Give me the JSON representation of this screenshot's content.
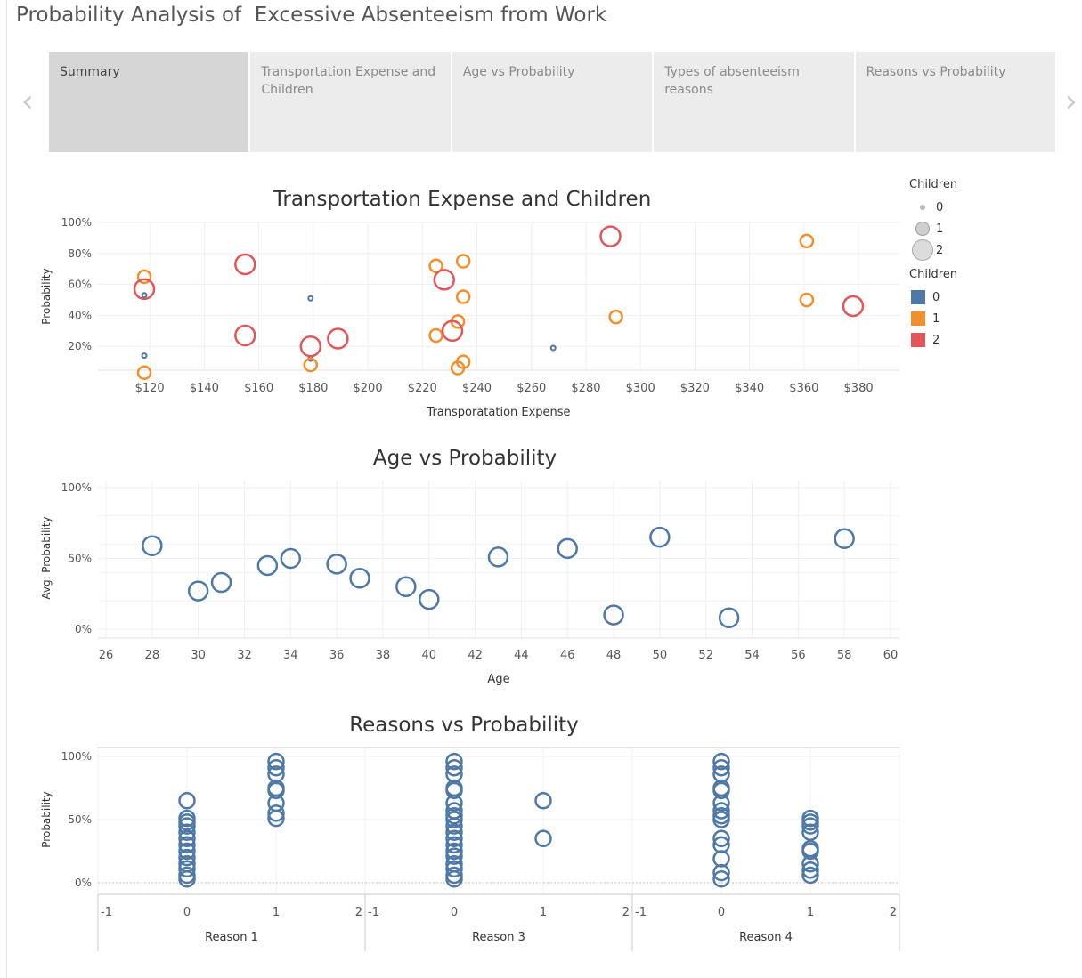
{
  "page": {
    "title": "Probability Analysis of  Excessive Absenteeism from Work"
  },
  "nav": {
    "prev_icon": "chevron-left-icon",
    "next_icon": "chevron-right-icon"
  },
  "tabs": [
    {
      "label": "Summary",
      "active": true
    },
    {
      "label": "Transportation Expense and Children",
      "active": false
    },
    {
      "label": "Age vs Probability",
      "active": false
    },
    {
      "label": "Types of absenteeism reasons",
      "active": false
    },
    {
      "label": "Reasons vs Probability",
      "active": false
    }
  ],
  "colors": {
    "c0": "#4e79a7",
    "c1": "#f28e2b",
    "c2": "#e15759"
  },
  "legend": {
    "size_title": "Children",
    "size_items": [
      "0",
      "1",
      "2"
    ],
    "color_title": "Children",
    "color_items": [
      "0",
      "1",
      "2"
    ]
  },
  "chart_data": [
    {
      "type": "scatter",
      "title": "Transportation Expense and Children",
      "xlabel": "Transporatation Expense",
      "ylabel": "Probability",
      "xlim": [
        101,
        395
      ],
      "ylim": [
        0,
        1.0
      ],
      "x_ticks": [
        120,
        140,
        160,
        180,
        200,
        220,
        240,
        260,
        280,
        300,
        320,
        340,
        360,
        380
      ],
      "x_tick_labels": [
        "$120",
        "$140",
        "$160",
        "$180",
        "$200",
        "$220",
        "$240",
        "$260",
        "$280",
        "$300",
        "$320",
        "$340",
        "$360",
        "$380"
      ],
      "y_ticks": [
        0.2,
        0.4,
        0.6,
        0.8,
        1.0
      ],
      "y_tick_labels": [
        "20%",
        "40%",
        "60%",
        "80%",
        "100%"
      ],
      "size_by": "Children",
      "color_by": "Children",
      "points": [
        {
          "x": 118,
          "y": 0.53,
          "children": 0
        },
        {
          "x": 118,
          "y": 0.14,
          "children": 0
        },
        {
          "x": 179,
          "y": 0.51,
          "children": 0
        },
        {
          "x": 179,
          "y": 0.12,
          "children": 0
        },
        {
          "x": 268,
          "y": 0.19,
          "children": 0
        },
        {
          "x": 118,
          "y": 0.65,
          "children": 1
        },
        {
          "x": 118,
          "y": 0.03,
          "children": 1
        },
        {
          "x": 179,
          "y": 0.08,
          "children": 1
        },
        {
          "x": 225,
          "y": 0.72,
          "children": 1
        },
        {
          "x": 235,
          "y": 0.75,
          "children": 1
        },
        {
          "x": 235,
          "y": 0.52,
          "children": 1
        },
        {
          "x": 233,
          "y": 0.36,
          "children": 1
        },
        {
          "x": 225,
          "y": 0.27,
          "children": 1
        },
        {
          "x": 235,
          "y": 0.1,
          "children": 1
        },
        {
          "x": 233,
          "y": 0.06,
          "children": 1
        },
        {
          "x": 291,
          "y": 0.39,
          "children": 1
        },
        {
          "x": 361,
          "y": 0.88,
          "children": 1
        },
        {
          "x": 361,
          "y": 0.5,
          "children": 1
        },
        {
          "x": 118,
          "y": 0.57,
          "children": 2
        },
        {
          "x": 155,
          "y": 0.73,
          "children": 2
        },
        {
          "x": 155,
          "y": 0.27,
          "children": 2
        },
        {
          "x": 179,
          "y": 0.2,
          "children": 2
        },
        {
          "x": 189,
          "y": 0.25,
          "children": 2
        },
        {
          "x": 228,
          "y": 0.63,
          "children": 2
        },
        {
          "x": 231,
          "y": 0.3,
          "children": 2
        },
        {
          "x": 289,
          "y": 0.91,
          "children": 2
        },
        {
          "x": 378,
          "y": 0.46,
          "children": 2
        }
      ]
    },
    {
      "type": "scatter",
      "title": "Age vs Probability",
      "xlabel": "Age",
      "ylabel": "Avg. Probability",
      "xlim": [
        26,
        60
      ],
      "ylim": [
        0,
        1.0
      ],
      "x_ticks": [
        26,
        28,
        30,
        32,
        34,
        36,
        38,
        40,
        42,
        44,
        46,
        48,
        50,
        52,
        54,
        56,
        58,
        60
      ],
      "x_tick_labels": [
        "26",
        "28",
        "30",
        "32",
        "34",
        "36",
        "38",
        "40",
        "42",
        "44",
        "46",
        "48",
        "50",
        "52",
        "54",
        "56",
        "58",
        "60"
      ],
      "y_ticks": [
        0,
        0.5,
        1.0
      ],
      "y_tick_labels": [
        "0%",
        "50%",
        "100%"
      ],
      "x": [
        28,
        30,
        31,
        33,
        34,
        36,
        37,
        39,
        40,
        43,
        46,
        48,
        50,
        53,
        58
      ],
      "y": [
        0.59,
        0.27,
        0.33,
        0.45,
        0.5,
        0.46,
        0.36,
        0.3,
        0.21,
        0.51,
        0.57,
        0.1,
        0.65,
        0.08,
        0.64
      ]
    },
    {
      "type": "scatter",
      "title": "Reasons vs Probability",
      "ylabel": "Probability",
      "ylim": [
        -0.09,
        1.03
      ],
      "y_ticks": [
        0,
        0.5,
        1.0
      ],
      "y_tick_labels": [
        "0%",
        "50%",
        "100%"
      ],
      "xlim": [
        -1,
        2
      ],
      "x_ticks": [
        -1,
        0,
        1,
        2
      ],
      "x_tick_labels": [
        "-1",
        "0",
        "1",
        "2"
      ],
      "panels": [
        {
          "xlabel": "Reason 1",
          "points": [
            {
              "x": 0,
              "y": [
                0.65,
                0.51,
                0.48,
                0.45,
                0.4,
                0.35,
                0.3,
                0.25,
                0.2,
                0.15,
                0.11,
                0.06,
                0.03
              ]
            },
            {
              "x": 1,
              "y": [
                0.96,
                0.91,
                0.86,
                0.75,
                0.73,
                0.63,
                0.55,
                0.51
              ]
            }
          ]
        },
        {
          "xlabel": "Reason 3",
          "points": [
            {
              "x": 0,
              "y": [
                0.96,
                0.91,
                0.86,
                0.75,
                0.73,
                0.63,
                0.57,
                0.53,
                0.5,
                0.45,
                0.4,
                0.35,
                0.3,
                0.25,
                0.21,
                0.15,
                0.11,
                0.06,
                0.03
              ]
            },
            {
              "x": 1,
              "y": [
                0.65,
                0.35
              ]
            }
          ]
        },
        {
          "xlabel": "Reason 4",
          "points": [
            {
              "x": 0,
              "y": [
                0.96,
                0.91,
                0.86,
                0.75,
                0.73,
                0.63,
                0.57,
                0.53,
                0.5,
                0.35,
                0.3,
                0.19,
                0.08,
                0.03
              ]
            },
            {
              "x": 1,
              "y": [
                0.51,
                0.48,
                0.45,
                0.4,
                0.27,
                0.25,
                0.15,
                0.1,
                0.06
              ]
            }
          ]
        }
      ]
    }
  ]
}
